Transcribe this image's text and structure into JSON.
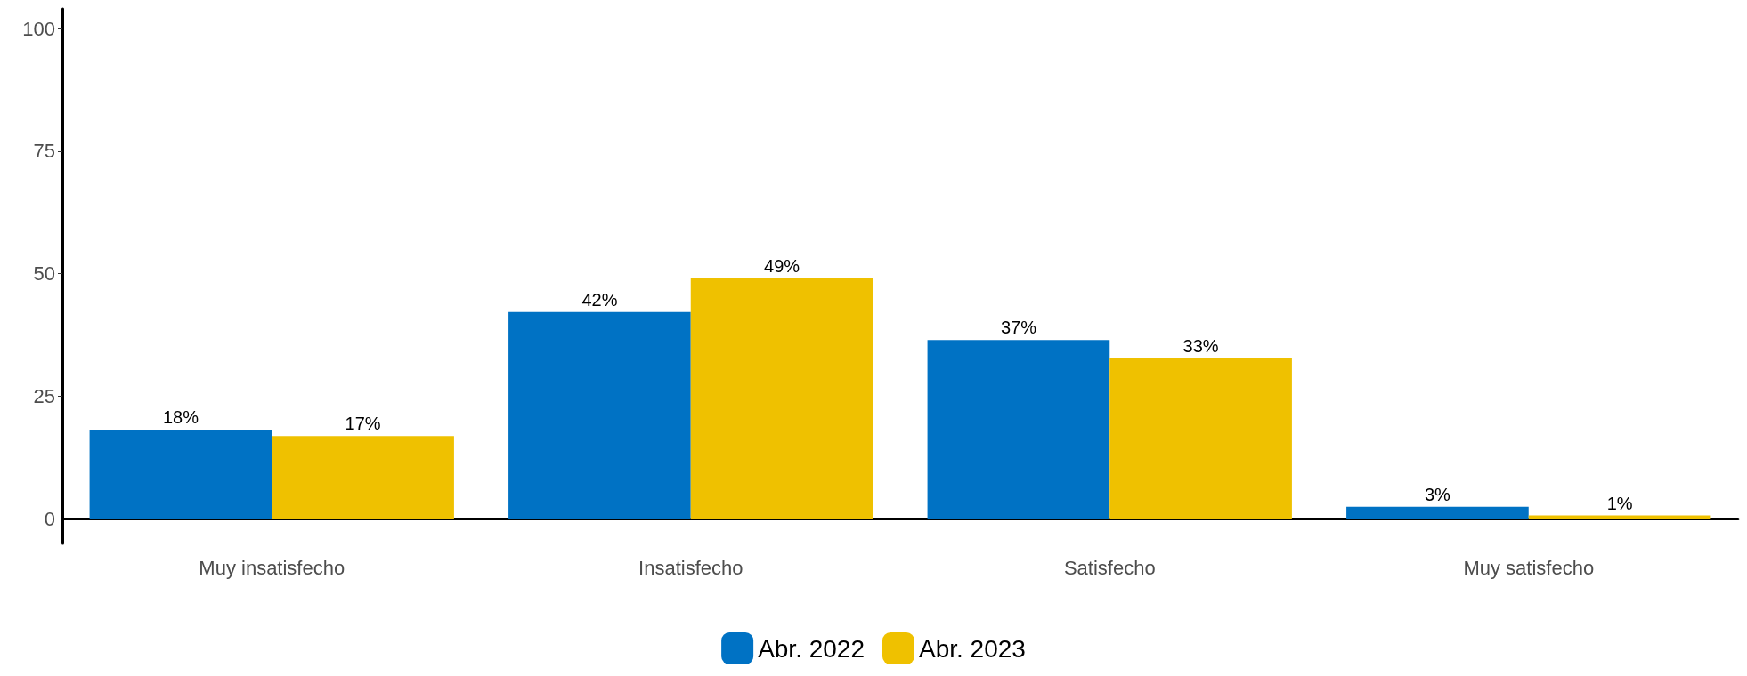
{
  "chart_data": {
    "type": "bar",
    "categories": [
      "Muy insatisfecho",
      "Insatisfecho",
      "Satisfecho",
      "Muy satisfecho"
    ],
    "series": [
      {
        "name": "Abr. 2022",
        "color": "#0072c4",
        "values": [
          18.2,
          42.2,
          36.5,
          2.5
        ],
        "value_labels": [
          "18%",
          "42%",
          "37%",
          "3%"
        ]
      },
      {
        "name": "Abr. 2023",
        "color": "#efc100",
        "values": [
          16.9,
          49.1,
          32.8,
          0.7
        ],
        "value_labels": [
          "17%",
          "49%",
          "33%",
          "1%"
        ]
      }
    ],
    "ylim": [
      -5,
      104
    ],
    "yticks": [
      0,
      25,
      50,
      75,
      100
    ],
    "grid": false,
    "legend": "bottom"
  }
}
